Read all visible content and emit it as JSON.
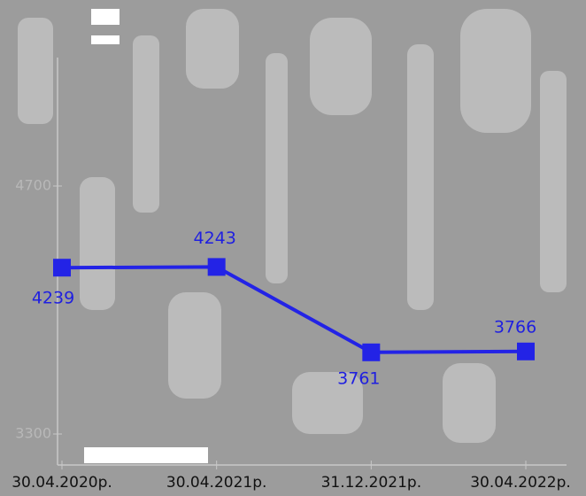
{
  "chart_data": {
    "type": "line",
    "categories": [
      "30.04.2020р.",
      "30.04.2021р.",
      "31.12.2021р.",
      "30.04.2022р."
    ],
    "series": [
      {
        "name": null,
        "color": "#2323e6",
        "values": [
          4239,
          4243,
          3761,
          3766
        ]
      }
    ],
    "ylim": [
      3300,
      4700
    ],
    "yticks": [
      3300,
      4700
    ]
  }
}
